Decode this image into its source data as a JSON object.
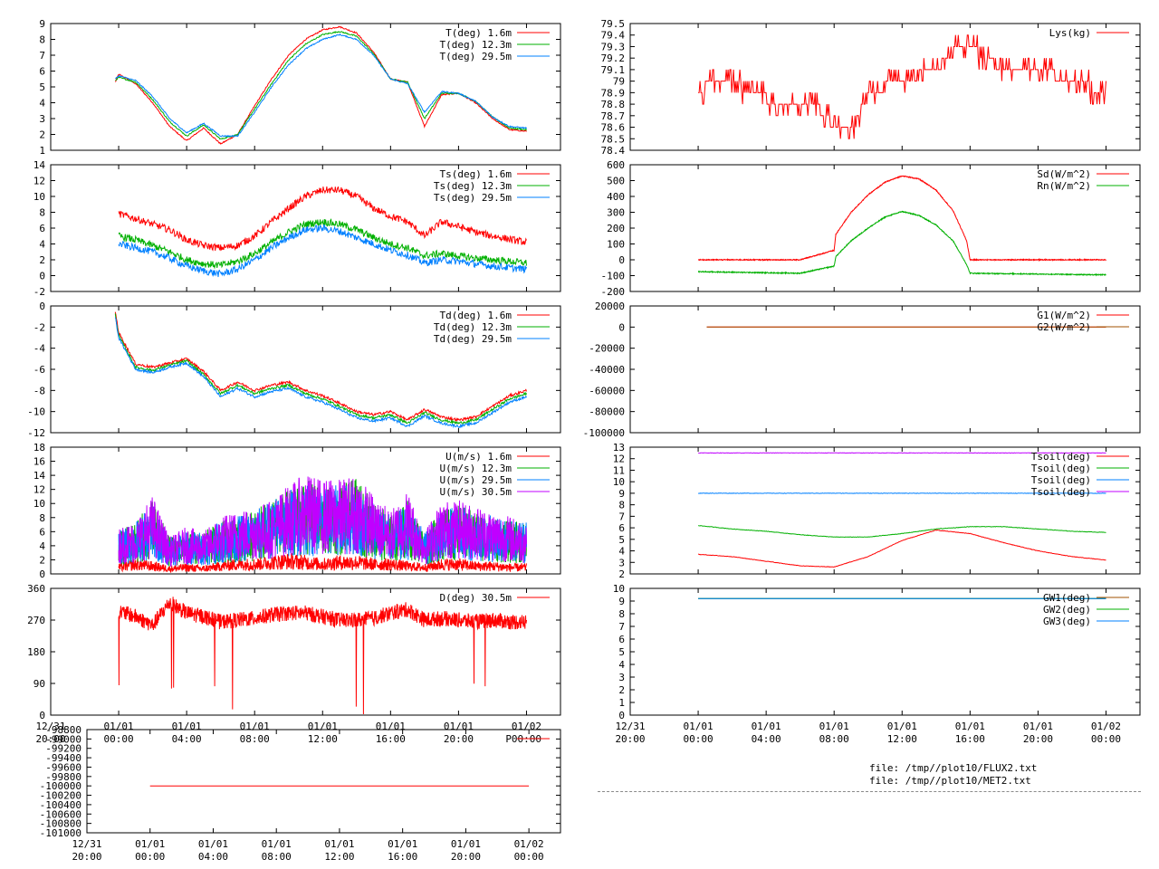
{
  "time_axis": {
    "range_hours": [
      20,
      50
    ],
    "ticks": [
      {
        "hour": 20,
        "l1": "12/31",
        "l2": "20:00"
      },
      {
        "hour": 24,
        "l1": "01/01",
        "l2": "00:00"
      },
      {
        "hour": 28,
        "l1": "01/01",
        "l2": "04:00"
      },
      {
        "hour": 32,
        "l1": "01/01",
        "l2": "08:00"
      },
      {
        "hour": 36,
        "l1": "01/01",
        "l2": "12:00"
      },
      {
        "hour": 40,
        "l1": "01/01",
        "l2": "16:00"
      },
      {
        "hour": 44,
        "l1": "01/01",
        "l2": "20:00"
      },
      {
        "hour": 48,
        "l1": "01/02",
        "l2": "00:00"
      }
    ]
  },
  "colors": {
    "red": "#ff0000",
    "green": "#00b000",
    "blue": "#0080ff",
    "purple": "#c000ff",
    "brown": "#a05000",
    "frame": "#000000"
  },
  "footer": {
    "file1": "file: /tmp//plot10/FLUX2.txt",
    "file2": "file: /tmp//plot10/MET2.txt"
  },
  "chart_data": [
    {
      "id": "temp",
      "type": "line",
      "x": [
        23.8,
        24,
        25,
        26,
        27,
        28,
        29,
        30,
        31,
        32,
        33,
        34,
        35,
        36,
        37,
        38,
        39,
        40,
        41,
        42,
        43,
        44,
        45,
        46,
        47,
        48
      ],
      "ylim": [
        1,
        9
      ],
      "ytick_labels": [
        "1",
        "2",
        "3",
        "4",
        "5",
        "6",
        "7",
        "8",
        "9"
      ],
      "grid": false,
      "legend": "top-right",
      "series": [
        {
          "name": "T(deg)  1.6m",
          "color": "red",
          "values": [
            5.3,
            5.8,
            5.2,
            4.0,
            2.5,
            1.6,
            2.4,
            1.4,
            2.0,
            3.8,
            5.5,
            7.0,
            8.0,
            8.6,
            8.8,
            8.4,
            7.2,
            5.5,
            5.3,
            2.5,
            4.5,
            4.6,
            4.0,
            3.0,
            2.3,
            2.2
          ]
        },
        {
          "name": "T(deg) 12.3m",
          "color": "green",
          "values": [
            5.4,
            5.6,
            5.3,
            4.2,
            2.8,
            1.9,
            2.6,
            1.7,
            2.0,
            3.6,
            5.2,
            6.7,
            7.7,
            8.3,
            8.5,
            8.2,
            7.1,
            5.5,
            5.3,
            3.0,
            4.6,
            4.6,
            4.1,
            3.1,
            2.4,
            2.3
          ]
        },
        {
          "name": "T(deg) 29.5m",
          "color": "blue",
          "values": [
            5.5,
            5.7,
            5.4,
            4.4,
            3.0,
            2.1,
            2.7,
            1.9,
            1.9,
            3.4,
            5.0,
            6.4,
            7.4,
            8.0,
            8.3,
            8.0,
            7.0,
            5.5,
            5.2,
            3.4,
            4.7,
            4.6,
            4.1,
            3.1,
            2.5,
            2.4
          ]
        }
      ]
    },
    {
      "id": "ts",
      "type": "line",
      "x": [
        24,
        25,
        26,
        27,
        28,
        29,
        30,
        31,
        32,
        33,
        34,
        35,
        36,
        37,
        38,
        39,
        40,
        41,
        42,
        43,
        44,
        45,
        46,
        47,
        48
      ],
      "ylim": [
        -2,
        14
      ],
      "ytick_labels": [
        "-2",
        "0",
        "2",
        "4",
        "6",
        "8",
        "10",
        "12",
        "14"
      ],
      "grid": false,
      "legend": "top-right",
      "series": [
        {
          "name": "Ts(deg)  1.6m",
          "color": "red",
          "values": [
            7.8,
            7.2,
            6.5,
            5.8,
            4.5,
            3.8,
            3.5,
            3.8,
            5.0,
            6.8,
            8.5,
            10.0,
            10.8,
            10.8,
            10.0,
            8.5,
            7.5,
            6.8,
            5.0,
            6.8,
            6.2,
            5.5,
            5.0,
            4.6,
            4.2
          ]
        },
        {
          "name": "Ts(deg) 12.3m",
          "color": "green",
          "values": [
            5.0,
            4.5,
            3.8,
            3.0,
            2.0,
            1.5,
            1.3,
            1.8,
            2.8,
            4.2,
            5.5,
            6.5,
            6.8,
            6.5,
            5.8,
            4.8,
            4.0,
            3.5,
            2.5,
            2.8,
            2.5,
            2.2,
            2.0,
            1.8,
            1.6
          ]
        },
        {
          "name": "Ts(deg) 29.5m",
          "color": "blue",
          "values": [
            4.0,
            3.5,
            3.0,
            2.2,
            1.2,
            0.6,
            0.2,
            0.8,
            2.0,
            3.5,
            4.8,
            5.8,
            6.0,
            5.6,
            4.8,
            4.0,
            3.2,
            2.6,
            1.6,
            2.0,
            1.8,
            1.5,
            1.2,
            1.0,
            0.8
          ]
        }
      ]
    },
    {
      "id": "td",
      "type": "line",
      "x": [
        23.8,
        24,
        24.5,
        25,
        26,
        27,
        28,
        29,
        30,
        31,
        32,
        33,
        34,
        35,
        36,
        37,
        38,
        39,
        40,
        41,
        42,
        43,
        44,
        45,
        46,
        47,
        48
      ],
      "ylim": [
        -12,
        0
      ],
      "ytick_labels": [
        "-12",
        "-10",
        "-8",
        "-6",
        "-4",
        "-2",
        "0"
      ],
      "grid": false,
      "legend": "top-right",
      "series": [
        {
          "name": "Td(deg)  1.6m",
          "color": "red",
          "values": [
            -0.5,
            -2.5,
            -4.0,
            -5.5,
            -5.8,
            -5.4,
            -5.0,
            -6.2,
            -8.0,
            -7.2,
            -8.0,
            -7.5,
            -7.2,
            -8.0,
            -8.5,
            -9.2,
            -10.0,
            -10.3,
            -10.0,
            -10.8,
            -9.8,
            -10.5,
            -10.8,
            -10.5,
            -9.5,
            -8.5,
            -8.0
          ]
        },
        {
          "name": "Td(deg) 12.3m",
          "color": "green",
          "values": [
            -0.8,
            -2.8,
            -4.3,
            -5.8,
            -6.1,
            -5.6,
            -5.2,
            -6.5,
            -8.3,
            -7.5,
            -8.3,
            -7.8,
            -7.5,
            -8.3,
            -8.8,
            -9.5,
            -10.3,
            -10.6,
            -10.3,
            -11.1,
            -10.1,
            -10.8,
            -11.1,
            -10.8,
            -9.8,
            -8.8,
            -8.3
          ]
        },
        {
          "name": "Td(deg) 29.5m",
          "color": "blue",
          "values": [
            -1.0,
            -3.0,
            -4.5,
            -6.0,
            -6.3,
            -5.8,
            -5.4,
            -6.7,
            -8.6,
            -7.8,
            -8.6,
            -8.1,
            -7.8,
            -8.6,
            -9.1,
            -9.8,
            -10.6,
            -10.9,
            -10.6,
            -11.4,
            -10.4,
            -11.1,
            -11.4,
            -11.1,
            -10.1,
            -9.1,
            -8.6
          ]
        }
      ]
    },
    {
      "id": "wind",
      "type": "line",
      "x": [
        24,
        25,
        26,
        27,
        28,
        29,
        30,
        31,
        32,
        33,
        34,
        35,
        36,
        37,
        38,
        39,
        40,
        41,
        42,
        43,
        44,
        45,
        46,
        47,
        48
      ],
      "ylim": [
        0,
        18
      ],
      "ytick_labels": [
        "0",
        "2",
        "4",
        "6",
        "8",
        "10",
        "12",
        "14",
        "16",
        "18"
      ],
      "grid": false,
      "legend": "top-right",
      "series": [
        {
          "name": "U(m/s)  1.6m",
          "color": "red",
          "values": [
            1.0,
            1.5,
            1.2,
            0.8,
            1.0,
            0.8,
            1.2,
            1.5,
            1.5,
            1.8,
            2.0,
            1.8,
            1.5,
            1.8,
            1.8,
            1.5,
            1.5,
            1.2,
            1.0,
            1.5,
            1.5,
            1.2,
            1.2,
            1.0,
            1.0
          ]
        },
        {
          "name": "U(m/s) 12.3m",
          "color": "green",
          "values": [
            4.0,
            5.0,
            7.0,
            3.5,
            4.0,
            4.0,
            5.0,
            5.5,
            6.0,
            7.0,
            8.0,
            9.0,
            8.0,
            8.5,
            9.0,
            7.0,
            5.5,
            7.0,
            4.0,
            6.0,
            6.5,
            6.0,
            5.5,
            5.0,
            5.0
          ]
        },
        {
          "name": "U(m/s) 29.5m",
          "color": "blue",
          "values": [
            4.0,
            5.0,
            6.5,
            3.5,
            4.0,
            4.0,
            5.0,
            5.5,
            6.0,
            7.0,
            8.0,
            8.5,
            8.0,
            8.5,
            8.5,
            7.0,
            5.5,
            6.5,
            4.0,
            6.0,
            6.5,
            6.0,
            5.5,
            5.0,
            5.0
          ]
        },
        {
          "name": "U(m/s) 30.5m",
          "color": "purple",
          "values": [
            4.5,
            5.0,
            7.5,
            3.5,
            4.5,
            4.0,
            5.5,
            6.0,
            6.5,
            7.0,
            8.5,
            9.5,
            9.0,
            9.0,
            9.5,
            7.5,
            6.0,
            8.0,
            4.0,
            7.0,
            7.0,
            6.5,
            6.0,
            5.5,
            5.0
          ]
        }
      ]
    },
    {
      "id": "dir",
      "type": "line",
      "x": [
        24,
        25,
        26,
        27,
        28,
        29,
        30,
        31,
        32,
        33,
        34,
        35,
        36,
        37,
        38,
        39,
        40,
        41,
        42,
        43,
        44,
        45,
        46,
        47,
        48
      ],
      "ylim": [
        0,
        360
      ],
      "ytick_labels": [
        "0",
        "90",
        "180",
        "270",
        "360"
      ],
      "grid": false,
      "legend": "top-right",
      "series": [
        {
          "name": "D(deg)  30.5m",
          "color": "red",
          "values": [
            295,
            280,
            255,
            320,
            290,
            280,
            265,
            270,
            275,
            285,
            290,
            290,
            280,
            270,
            270,
            275,
            290,
            300,
            270,
            275,
            270,
            265,
            270,
            265,
            265
          ]
        }
      ]
    },
    {
      "id": "pres",
      "type": "line",
      "x": [
        24,
        48
      ],
      "ylim": [
        -101000,
        -98800
      ],
      "ytick_labels": [
        "-101000",
        "-100800",
        "-100600",
        "-100400",
        "-100200",
        "-100000",
        "-99800",
        "-99600",
        "-99400",
        "-99200",
        "-99000",
        "-98800"
      ],
      "grid": false,
      "legend": "top-right",
      "series": [
        {
          "name": "P",
          "color": "red",
          "values": [
            -100000,
            -100000
          ]
        }
      ]
    },
    {
      "id": "lys",
      "type": "line",
      "x": [
        24,
        25,
        26,
        27,
        28,
        29,
        30,
        31,
        32,
        33,
        34,
        35,
        36,
        37,
        38,
        39,
        40,
        41,
        42,
        43,
        44,
        45,
        46,
        47,
        48
      ],
      "ylim": [
        78.4,
        79.5
      ],
      "ytick_labels": [
        "78.4",
        "78.5",
        "78.6",
        "78.7",
        "78.8",
        "78.9",
        "79",
        "79.1",
        "79.2",
        "79.3",
        "79.4",
        "79.5"
      ],
      "grid": false,
      "legend": "top-right",
      "series": [
        {
          "name": "Lys(kg)",
          "color": "red",
          "values": [
            78.9,
            79.0,
            79.0,
            78.9,
            78.85,
            78.8,
            78.8,
            78.8,
            78.6,
            78.55,
            78.9,
            78.95,
            79.0,
            79.05,
            79.1,
            79.25,
            79.3,
            79.2,
            79.1,
            79.05,
            79.1,
            79.05,
            79.0,
            78.95,
            78.9
          ]
        }
      ]
    },
    {
      "id": "rad",
      "type": "line",
      "x": [
        24,
        30,
        32,
        32.1,
        33,
        34,
        35,
        36,
        37,
        38,
        39,
        39.8,
        40,
        48
      ],
      "ylim": [
        -200,
        600
      ],
      "ytick_labels": [
        "-200",
        "-100",
        "0",
        "100",
        "200",
        "300",
        "400",
        "500",
        "600"
      ],
      "grid": false,
      "legend": "top-right",
      "series": [
        {
          "name": "Sd(W/m^2)",
          "color": "red",
          "values": [
            0,
            0,
            60,
            160,
            300,
            410,
            490,
            530,
            510,
            440,
            310,
            120,
            0,
            0
          ]
        },
        {
          "name": "Rn(W/m^2)",
          "color": "green",
          "values": [
            -75,
            -85,
            -40,
            20,
            120,
            200,
            270,
            305,
            280,
            220,
            120,
            -30,
            -85,
            -95
          ]
        }
      ]
    },
    {
      "id": "ground",
      "type": "line",
      "x": [
        24.5,
        48
      ],
      "ylim": [
        -100000,
        20000
      ],
      "ytick_labels": [
        "-100000",
        "-80000",
        "-60000",
        "-40000",
        "-20000",
        "0",
        "20000"
      ],
      "grid": false,
      "legend": "top-right",
      "series": [
        {
          "name": "G1(W/m^2)",
          "color": "red",
          "values": [
            0,
            0
          ]
        },
        {
          "name": "G2(W/m^2)",
          "color": "brown",
          "values": [
            0,
            0
          ]
        }
      ]
    },
    {
      "id": "tsoil",
      "type": "line",
      "x": [
        24,
        26,
        28,
        30,
        32,
        34,
        36,
        38,
        40,
        42,
        44,
        46,
        48
      ],
      "ylim": [
        2,
        13
      ],
      "ytick_labels": [
        "2",
        "3",
        "4",
        "5",
        "6",
        "7",
        "8",
        "9",
        "10",
        "11",
        "12",
        "13"
      ],
      "grid": false,
      "legend": "top-right",
      "series": [
        {
          "name": "Tsoil(deg)",
          "color": "red",
          "values": [
            3.7,
            3.5,
            3.1,
            2.7,
            2.6,
            3.5,
            4.9,
            5.8,
            5.5,
            4.7,
            4.0,
            3.5,
            3.2
          ]
        },
        {
          "name": "Tsoil(deg)",
          "color": "green",
          "values": [
            6.2,
            5.9,
            5.7,
            5.4,
            5.2,
            5.2,
            5.5,
            5.9,
            6.1,
            6.1,
            5.9,
            5.7,
            5.6
          ]
        },
        {
          "name": "Tsoil(deg)",
          "color": "blue",
          "values": [
            9.0,
            9.0,
            9.0,
            9.0,
            9.0,
            9.0,
            9.0,
            9.0,
            9.0,
            9.0,
            9.0,
            9.0,
            9.0
          ]
        },
        {
          "name": "Tsoil(deg)",
          "color": "purple",
          "values": [
            12.5,
            12.5,
            12.5,
            12.5,
            12.5,
            12.5,
            12.5,
            12.5,
            12.5,
            12.5,
            12.5,
            12.5,
            12.5
          ]
        }
      ]
    },
    {
      "id": "gw",
      "type": "line",
      "x": [
        24,
        48
      ],
      "ylim": [
        0,
        10
      ],
      "ytick_labels": [
        "0",
        "1",
        "2",
        "3",
        "4",
        "5",
        "6",
        "7",
        "8",
        "9",
        "10"
      ],
      "grid": false,
      "legend": "top-right",
      "series": [
        {
          "name": "GW1(deg)",
          "color": "brown",
          "values": [
            9.2,
            9.2
          ]
        },
        {
          "name": "GW2(deg)",
          "color": "green",
          "values": [
            9.2,
            9.2
          ]
        },
        {
          "name": "GW3(deg)",
          "color": "blue",
          "values": [
            9.2,
            9.2
          ]
        }
      ]
    }
  ]
}
